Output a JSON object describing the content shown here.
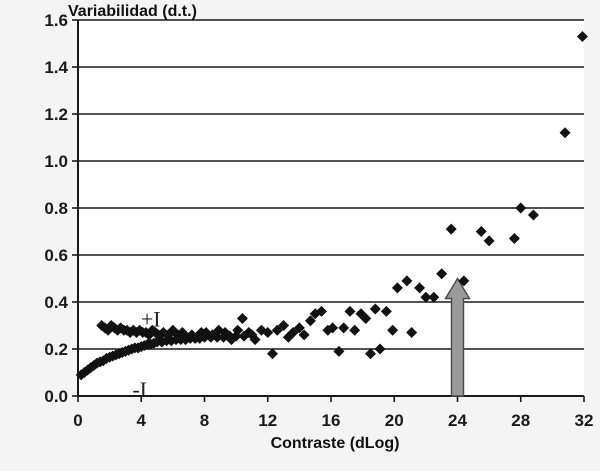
{
  "chart_data": {
    "type": "scatter",
    "title": "",
    "ylabel": "Variabilidad (d.t.)",
    "xlabel": "Contraste (dLog)",
    "xlim": [
      0,
      32
    ],
    "ylim": [
      0,
      1.6
    ],
    "x_ticks": [
      "0",
      "4",
      "8",
      "12",
      "16",
      "20",
      "24",
      "28",
      "32"
    ],
    "y_ticks": [
      "0.0",
      "0.2",
      "0.4",
      "0.6",
      "0.8",
      "1.0",
      "1.2",
      "1.4",
      "1.6"
    ],
    "grid": "horizontal",
    "legend": "none",
    "marker_color": "#111111",
    "arrow_color": "#9a9a9a",
    "annotations": [
      {
        "text": "+I",
        "x": 4.6,
        "y": 0.33
      },
      {
        "text": "-I",
        "x": 3.9,
        "y": 0.03
      }
    ],
    "arrow": {
      "x": 24,
      "y_from": 0.0,
      "y_to": 0.5
    },
    "series": [
      {
        "name": "",
        "points": [
          [
            0.2,
            0.09
          ],
          [
            0.4,
            0.1
          ],
          [
            0.6,
            0.11
          ],
          [
            0.8,
            0.12
          ],
          [
            1.0,
            0.13
          ],
          [
            1.2,
            0.14
          ],
          [
            1.4,
            0.145
          ],
          [
            1.6,
            0.15
          ],
          [
            1.8,
            0.16
          ],
          [
            2.0,
            0.165
          ],
          [
            2.2,
            0.17
          ],
          [
            2.4,
            0.175
          ],
          [
            2.6,
            0.18
          ],
          [
            2.8,
            0.185
          ],
          [
            3.0,
            0.19
          ],
          [
            3.2,
            0.195
          ],
          [
            3.4,
            0.2
          ],
          [
            3.6,
            0.205
          ],
          [
            3.8,
            0.205
          ],
          [
            4.0,
            0.21
          ],
          [
            4.2,
            0.215
          ],
          [
            4.4,
            0.22
          ],
          [
            4.6,
            0.22
          ],
          [
            4.8,
            0.225
          ],
          [
            5.0,
            0.23
          ],
          [
            5.3,
            0.23
          ],
          [
            5.6,
            0.235
          ],
          [
            5.9,
            0.235
          ],
          [
            6.2,
            0.24
          ],
          [
            6.5,
            0.24
          ],
          [
            6.8,
            0.24
          ],
          [
            7.1,
            0.245
          ],
          [
            7.4,
            0.245
          ],
          [
            7.7,
            0.245
          ],
          [
            8.0,
            0.25
          ],
          [
            8.4,
            0.25
          ],
          [
            8.8,
            0.25
          ],
          [
            9.2,
            0.25
          ],
          [
            9.6,
            0.255
          ],
          [
            10.0,
            0.255
          ],
          [
            10.5,
            0.255
          ],
          [
            11.0,
            0.26
          ],
          [
            1.5,
            0.3
          ],
          [
            1.7,
            0.29
          ],
          [
            1.9,
            0.28
          ],
          [
            2.1,
            0.3
          ],
          [
            2.3,
            0.29
          ],
          [
            2.5,
            0.28
          ],
          [
            2.7,
            0.29
          ],
          [
            2.9,
            0.28
          ],
          [
            3.1,
            0.28
          ],
          [
            3.3,
            0.27
          ],
          [
            3.5,
            0.28
          ],
          [
            3.7,
            0.27
          ],
          [
            3.9,
            0.28
          ],
          [
            4.1,
            0.27
          ],
          [
            4.3,
            0.27
          ],
          [
            4.5,
            0.26
          ],
          [
            4.7,
            0.28
          ],
          [
            4.9,
            0.27
          ],
          [
            5.1,
            0.26
          ],
          [
            5.4,
            0.27
          ],
          [
            5.7,
            0.26
          ],
          [
            6.0,
            0.28
          ],
          [
            6.3,
            0.26
          ],
          [
            6.6,
            0.27
          ],
          [
            6.9,
            0.25
          ],
          [
            7.2,
            0.26
          ],
          [
            7.5,
            0.25
          ],
          [
            7.8,
            0.27
          ],
          [
            8.1,
            0.27
          ],
          [
            8.5,
            0.26
          ],
          [
            8.9,
            0.28
          ],
          [
            9.3,
            0.27
          ],
          [
            9.7,
            0.24
          ],
          [
            10.1,
            0.28
          ],
          [
            10.4,
            0.33
          ],
          [
            10.8,
            0.27
          ],
          [
            11.2,
            0.24
          ],
          [
            11.6,
            0.28
          ],
          [
            12.0,
            0.27
          ],
          [
            12.3,
            0.18
          ],
          [
            12.6,
            0.28
          ],
          [
            13.0,
            0.3
          ],
          [
            13.3,
            0.25
          ],
          [
            13.6,
            0.27
          ],
          [
            14.0,
            0.29
          ],
          [
            14.3,
            0.26
          ],
          [
            14.7,
            0.32
          ],
          [
            15.0,
            0.35
          ],
          [
            15.4,
            0.36
          ],
          [
            15.8,
            0.28
          ],
          [
            16.1,
            0.29
          ],
          [
            16.5,
            0.19
          ],
          [
            16.8,
            0.29
          ],
          [
            17.2,
            0.36
          ],
          [
            17.5,
            0.28
          ],
          [
            17.9,
            0.35
          ],
          [
            18.2,
            0.33
          ],
          [
            18.5,
            0.18
          ],
          [
            18.8,
            0.37
          ],
          [
            19.1,
            0.2
          ],
          [
            19.5,
            0.36
          ],
          [
            19.9,
            0.28
          ],
          [
            20.2,
            0.46
          ],
          [
            20.8,
            0.49
          ],
          [
            21.1,
            0.27
          ],
          [
            21.6,
            0.46
          ],
          [
            22.0,
            0.42
          ],
          [
            22.5,
            0.42
          ],
          [
            23.0,
            0.52
          ],
          [
            23.6,
            0.71
          ],
          [
            24.4,
            0.49
          ],
          [
            25.5,
            0.7
          ],
          [
            26.0,
            0.66
          ],
          [
            27.6,
            0.67
          ],
          [
            28.0,
            0.8
          ],
          [
            28.8,
            0.77
          ],
          [
            30.8,
            1.12
          ],
          [
            31.9,
            1.53
          ]
        ]
      }
    ]
  }
}
